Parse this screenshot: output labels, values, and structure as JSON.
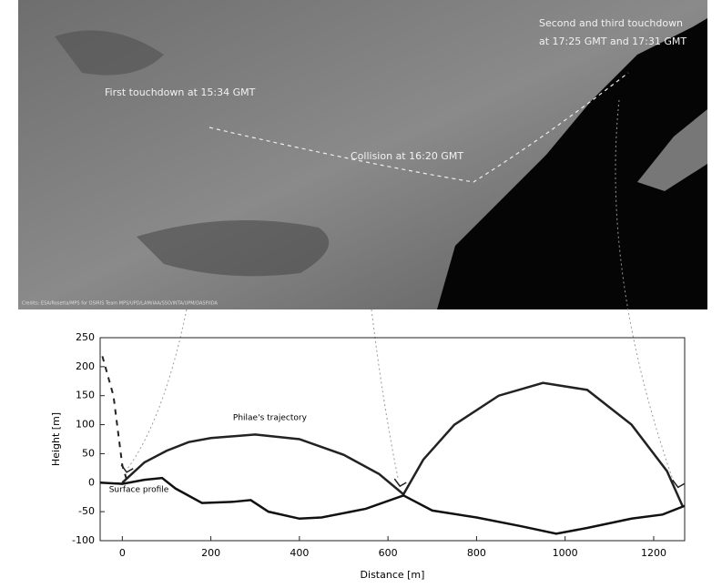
{
  "image_annotations": {
    "first": "First touchdown at 15:34 GMT",
    "collision": "Collision at 16:20 GMT",
    "second": [
      "Second and third touchdown",
      "at 17:25 GMT and 17:31 GMT"
    ],
    "credit": "Credits: ESA/Rosetta/MPS for OSIRIS Team MPS/UPD/LAM/IAA/SSO/INTA/UPM/DASP/IDA"
  },
  "chart_data": {
    "type": "line",
    "x_label": "Distance [m]",
    "y_label": "Height [m]",
    "xlim": [
      -50,
      1270
    ],
    "ylim": [
      -100,
      250
    ],
    "xticks": [
      0,
      200,
      400,
      600,
      800,
      1000,
      1200
    ],
    "yticks": [
      -100,
      -50,
      0,
      50,
      100,
      150,
      200,
      250
    ],
    "series": [
      {
        "name": "Philae's trajectory",
        "color": "#222222",
        "x": [
          0,
          50,
          100,
          150,
          200,
          300,
          400,
          500,
          580,
          635,
          680,
          750,
          850,
          950,
          1050,
          1150,
          1230,
          1265
        ],
        "values": [
          0,
          35,
          55,
          70,
          77,
          83,
          75,
          48,
          15,
          -20,
          40,
          100,
          150,
          172,
          160,
          100,
          20,
          -40
        ]
      },
      {
        "name": "Surface profile",
        "color": "#111111",
        "x": [
          -50,
          0,
          50,
          90,
          120,
          180,
          250,
          290,
          330,
          400,
          450,
          550,
          635,
          700,
          800,
          900,
          980,
          1050,
          1150,
          1220,
          1270
        ],
        "values": [
          0,
          -2,
          5,
          8,
          -10,
          -35,
          -33,
          -30,
          -50,
          -62,
          -60,
          -45,
          -22,
          -48,
          -60,
          -75,
          -88,
          -78,
          -62,
          -55,
          -40
        ]
      },
      {
        "color": "#222222",
        "dashed": true,
        "x": [
          -45,
          -20,
          0,
          10
        ],
        "values": [
          218,
          150,
          30,
          5
        ]
      }
    ]
  }
}
